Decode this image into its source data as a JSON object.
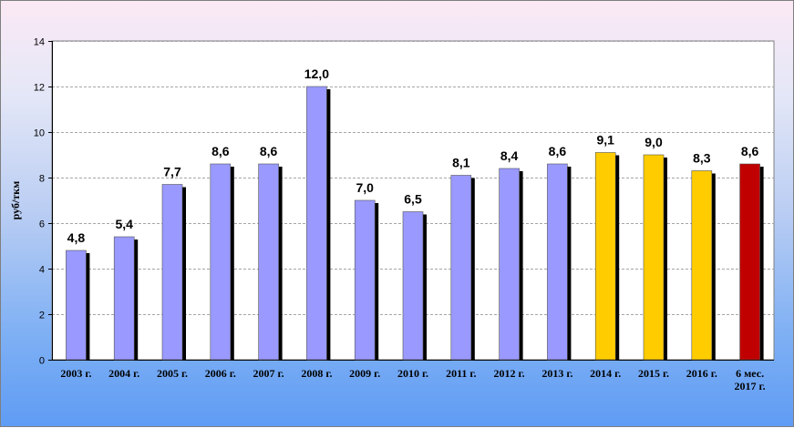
{
  "chart_data": {
    "type": "bar",
    "ylabel": "руб/ткм",
    "xlabel": "",
    "ylim": [
      0,
      14
    ],
    "yticks": [
      0,
      2,
      4,
      6,
      8,
      10,
      12,
      14
    ],
    "grid": true,
    "legend": "none",
    "categories": [
      [
        "2003 г."
      ],
      [
        "2004 г."
      ],
      [
        "2005 г."
      ],
      [
        "2006 г."
      ],
      [
        "2007 г."
      ],
      [
        "2008 г."
      ],
      [
        "2009 г."
      ],
      [
        "2010 г."
      ],
      [
        "2011 г."
      ],
      [
        "2012 г."
      ],
      [
        "2013 г."
      ],
      [
        "2014 г."
      ],
      [
        "2015 г."
      ],
      [
        "2016 г."
      ],
      [
        "6 мес.",
        "2017 г."
      ]
    ],
    "values": [
      4.8,
      5.4,
      7.7,
      8.6,
      8.6,
      12.0,
      7.0,
      6.5,
      8.1,
      8.4,
      8.6,
      9.1,
      9.0,
      8.3,
      8.6
    ],
    "value_labels": [
      "4,8",
      "5,4",
      "7,7",
      "8,6",
      "8,6",
      "12,0",
      "7,0",
      "6,5",
      "8,1",
      "8,4",
      "8,6",
      "9,1",
      "9,0",
      "8,3",
      "8,6"
    ],
    "bar_colors": [
      "#9999ff",
      "#9999ff",
      "#9999ff",
      "#9999ff",
      "#9999ff",
      "#9999ff",
      "#9999ff",
      "#9999ff",
      "#9999ff",
      "#9999ff",
      "#9999ff",
      "#ffcc00",
      "#ffcc00",
      "#ffcc00",
      "#c00000"
    ],
    "plot_background": "#ffffff",
    "gridline_color": "#a6a6a6"
  }
}
